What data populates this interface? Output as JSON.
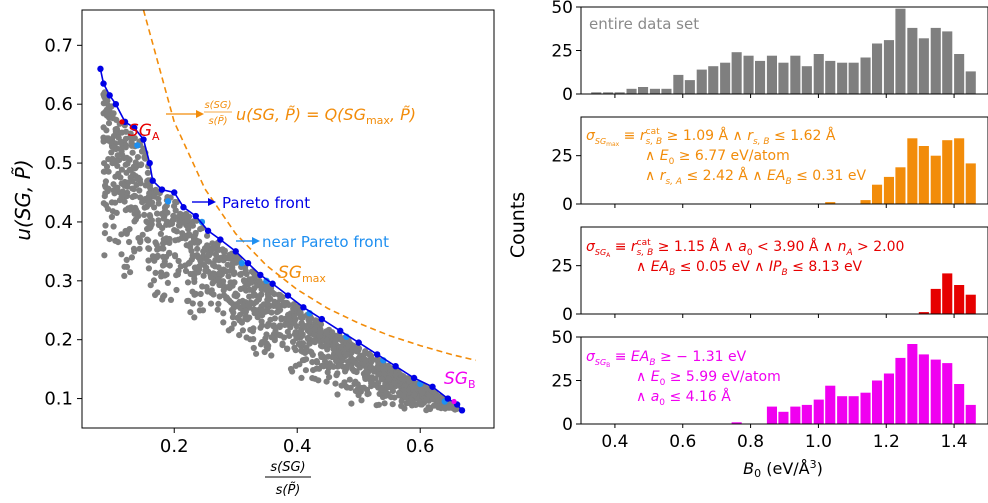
{
  "colors": {
    "gray": "#7f7f7f",
    "blue": "#0000e6",
    "lightblue": "#1e8ff0",
    "orange": "#f28c0a",
    "red": "#e60000",
    "magenta": "#f000f0"
  },
  "chart_data": [
    {
      "type": "scatter",
      "ylabel_main": "u(SG, P̃)",
      "xlabel_num": "s(SG)",
      "xlabel_den": "s(P̃)",
      "xlim": [
        0.05,
        0.72
      ],
      "ylim": [
        0.05,
        0.76
      ],
      "xticks": [
        "0.2",
        "0.4",
        "0.6"
      ],
      "xtick_values": [
        0.2,
        0.4,
        0.6
      ],
      "yticks": [
        "0.1",
        "0.2",
        "0.3",
        "0.4",
        "0.5",
        "0.6",
        "0.7"
      ],
      "ytick_values": [
        0.1,
        0.2,
        0.3,
        0.4,
        0.5,
        0.6,
        0.7
      ],
      "pareto_front": [
        [
          0.08,
          0.66
        ],
        [
          0.085,
          0.635
        ],
        [
          0.095,
          0.615
        ],
        [
          0.105,
          0.6
        ],
        [
          0.12,
          0.57
        ],
        [
          0.135,
          0.56
        ],
        [
          0.15,
          0.54
        ],
        [
          0.16,
          0.5
        ],
        [
          0.165,
          0.47
        ],
        [
          0.18,
          0.455
        ],
        [
          0.2,
          0.45
        ],
        [
          0.215,
          0.425
        ],
        [
          0.235,
          0.41
        ],
        [
          0.255,
          0.385
        ],
        [
          0.275,
          0.37
        ],
        [
          0.3,
          0.35
        ],
        [
          0.32,
          0.33
        ],
        [
          0.34,
          0.31
        ],
        [
          0.36,
          0.295
        ],
        [
          0.385,
          0.275
        ],
        [
          0.41,
          0.255
        ],
        [
          0.44,
          0.235
        ],
        [
          0.47,
          0.215
        ],
        [
          0.5,
          0.195
        ],
        [
          0.53,
          0.175
        ],
        [
          0.56,
          0.155
        ],
        [
          0.59,
          0.135
        ],
        [
          0.62,
          0.12
        ],
        [
          0.645,
          0.1
        ],
        [
          0.66,
          0.09
        ],
        [
          0.668,
          0.08
        ]
      ],
      "near_pareto_points": [
        [
          0.14,
          0.53
        ],
        [
          0.19,
          0.435
        ],
        [
          0.245,
          0.4
        ],
        [
          0.31,
          0.33
        ],
        [
          0.35,
          0.3
        ],
        [
          0.42,
          0.245
        ],
        [
          0.48,
          0.205
        ],
        [
          0.54,
          0.165
        ],
        [
          0.6,
          0.125
        ],
        [
          0.64,
          0.095
        ]
      ],
      "sgmax_curve": {
        "label_main": "SG",
        "label_sub": "max",
        "x": [
          0.15,
          0.2,
          0.25,
          0.3,
          0.35,
          0.4,
          0.45,
          0.5,
          0.55,
          0.6,
          0.65,
          0.69
        ],
        "y": [
          0.76,
          0.57,
          0.456,
          0.38,
          0.326,
          0.285,
          0.253,
          0.228,
          0.207,
          0.19,
          0.175,
          0.165
        ]
      },
      "annotations": {
        "sga_main": "SG",
        "sga_sub": "A",
        "sga_point": [
          0.115,
          0.57
        ],
        "sgb_main": "SG",
        "sgb_sub": "B",
        "sgb_point": [
          0.655,
          0.095
        ],
        "pareto_label": "Pareto front",
        "near_pareto_label": "near Pareto front",
        "formula_num": "s(SG)",
        "formula_den": "s(P̃)",
        "formula_rest": "u(SG, P̃) = Q(SG",
        "formula_sub": "max",
        "formula_end": ", P̃)"
      }
    },
    {
      "type": "bar",
      "xlabel": "B₀ (eV/Å³)",
      "ylabel": "Counts",
      "xlim": [
        0.3,
        1.5
      ],
      "xticks": [
        "0.4",
        "0.6",
        "0.8",
        "1.0",
        "1.2",
        "1.4"
      ],
      "xtick_values": [
        0.4,
        0.6,
        0.8,
        1.0,
        1.2,
        1.4
      ],
      "bin_width": 0.0345,
      "panels": [
        {
          "name": "entire data set",
          "color_key": "gray",
          "yticks": [
            "0",
            "25",
            "50"
          ],
          "ytick_values": [
            0,
            25,
            50
          ],
          "ylim": [
            0,
            50
          ],
          "bins_x": [
            0.345,
            0.38,
            0.414,
            0.449,
            0.483,
            0.518,
            0.552,
            0.587,
            0.621,
            0.656,
            0.69,
            0.725,
            0.759,
            0.794,
            0.828,
            0.863,
            0.897,
            0.932,
            0.966,
            1.001,
            1.035,
            1.07,
            1.104,
            1.139,
            1.173,
            1.208,
            1.242,
            1.277,
            1.311,
            1.346,
            1.38,
            1.415,
            1.449
          ],
          "counts": [
            1,
            1,
            1,
            3,
            4,
            3,
            3,
            11,
            8,
            14,
            16,
            18,
            24,
            22,
            19,
            22,
            18,
            22,
            16,
            23,
            19,
            18,
            18,
            21,
            29,
            31,
            49,
            38,
            32,
            38,
            36,
            23,
            13
          ]
        },
        {
          "name": "",
          "color_key": "orange",
          "yticks": [
            "0",
            "25"
          ],
          "ytick_values": [
            0,
            25
          ],
          "ylim": [
            0,
            45
          ],
          "bins_x": [
            1.001,
            1.035,
            1.07,
            1.104,
            1.139,
            1.173,
            1.208,
            1.242,
            1.277,
            1.311,
            1.346,
            1.38,
            1.415,
            1.449
          ],
          "counts": [
            0,
            1,
            0,
            0,
            2,
            10,
            14,
            19,
            34,
            30,
            25,
            33,
            34,
            21
          ],
          "condition_lines": [
            "σ_SGmax ≡ r^cat_s,B ≥ 1.09 Å ∧ r_s,B ≤ 1.62 Å",
            "∧ E₀ ≥ 6.77 eV/atom",
            "∧ r_s,A ≤ 2.42 Å ∧ EA_B ≤ 0.31 eV"
          ]
        },
        {
          "name": "",
          "color_key": "red",
          "yticks": [
            "0",
            "25"
          ],
          "ytick_values": [
            0,
            25
          ],
          "ylim": [
            0,
            45
          ],
          "bins_x": [
            1.311,
            1.346,
            1.38,
            1.415,
            1.449
          ],
          "counts": [
            1,
            13,
            21,
            15,
            10
          ],
          "condition_lines": [
            "σ_SGA ≡ r^cat_s,B ≥ 1.15 Å ∧ a₀ < 3.90 Å ∧ n_A > 2.00",
            "∧ EA_B ≤ 0.05 eV ∧ IP_B ≤ 8.13 eV"
          ]
        },
        {
          "name": "",
          "color_key": "magenta",
          "yticks": [
            "0",
            "25",
            "50"
          ],
          "ytick_values": [
            0,
            25,
            50
          ],
          "ylim": [
            0,
            50
          ],
          "bins_x": [
            0.759,
            0.794,
            0.828,
            0.863,
            0.897,
            0.932,
            0.966,
            1.001,
            1.035,
            1.07,
            1.104,
            1.139,
            1.173,
            1.208,
            1.242,
            1.277,
            1.311,
            1.346,
            1.38,
            1.415,
            1.449
          ],
          "counts": [
            1,
            0,
            0,
            10,
            7,
            10,
            11,
            14,
            22,
            16,
            16,
            18,
            25,
            29,
            38,
            46,
            40,
            37,
            35,
            23,
            11
          ],
          "condition_lines": [
            "σ_SGB ≡ EA_B ≥ −1.31 eV",
            "∧ E₀ ≥ 5.99 eV/atom",
            "∧ a₀ ≤ 4.16 Å"
          ]
        }
      ]
    }
  ]
}
